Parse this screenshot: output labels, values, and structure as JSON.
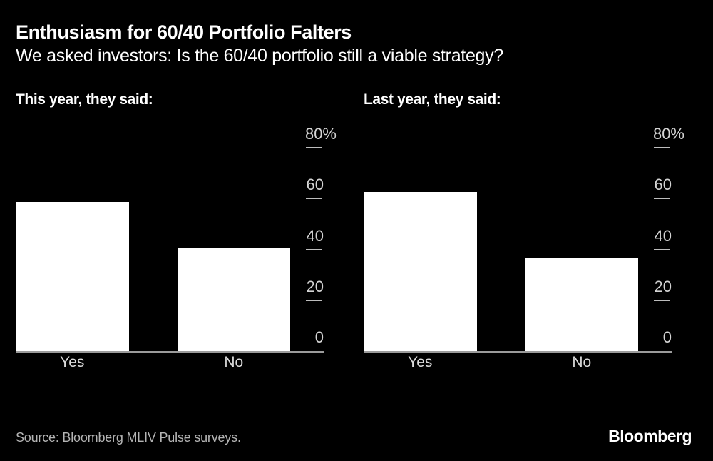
{
  "header": {
    "title": "Enthusiasm for 60/40 Portfolio Falters",
    "subtitle": "We asked investors: Is the 60/40 portfolio still a viable strategy?"
  },
  "chart_data": [
    {
      "type": "bar",
      "title": "This year, they said:",
      "categories": [
        "Yes",
        "No"
      ],
      "values": [
        59,
        41
      ],
      "unit": "%",
      "ylim": [
        0,
        80
      ],
      "yticks": [
        {
          "value": 80,
          "label": "80%"
        },
        {
          "value": 60,
          "label": "60"
        },
        {
          "value": 40,
          "label": "40"
        },
        {
          "value": 20,
          "label": "20"
        },
        {
          "value": 0,
          "label": "0"
        }
      ],
      "legend": "none",
      "grid": "off",
      "axis_side": "right"
    },
    {
      "type": "bar",
      "title": "Last year, they said:",
      "categories": [
        "Yes",
        "No"
      ],
      "values": [
        63,
        37
      ],
      "unit": "%",
      "ylim": [
        0,
        80
      ],
      "yticks": [
        {
          "value": 80,
          "label": "80%"
        },
        {
          "value": 60,
          "label": "60"
        },
        {
          "value": 40,
          "label": "40"
        },
        {
          "value": 20,
          "label": "20"
        },
        {
          "value": 0,
          "label": "0"
        }
      ],
      "legend": "none",
      "grid": "off",
      "axis_side": "right"
    }
  ],
  "footer": {
    "source": "Source: Bloomberg MLIV Pulse surveys.",
    "logo": "Bloomberg"
  },
  "colors": {
    "background": "#000000",
    "bar": "#ffffff",
    "title_text": "#ffffff",
    "tick_label": "#d4d4d4",
    "tick_mark": "#bdbdbd",
    "axis_line": "#9b9b9b",
    "category_label": "#dcdcdc",
    "source_text": "#b3b3b3"
  }
}
